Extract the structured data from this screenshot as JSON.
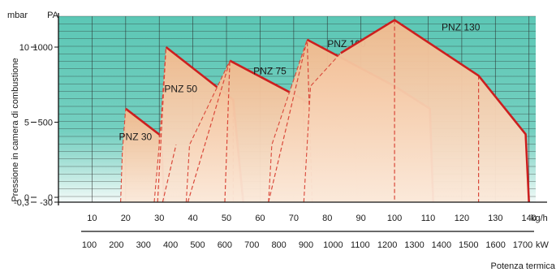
{
  "chart_data": {
    "type": "area",
    "title": "",
    "ylabel": "Pressione in camera di combustione",
    "y_units": {
      "left": "mbar",
      "right": "PA"
    },
    "y_ticks_mbar": [
      {
        "label": "10",
        "value": 10
      },
      {
        "label": "5",
        "value": 5
      },
      {
        "label": "0",
        "value": 0
      },
      {
        "label": "-0,3",
        "value": -0.3
      }
    ],
    "y_ticks_pa": [
      {
        "label": "1000",
        "value": 1000
      },
      {
        "label": "500",
        "value": 500
      },
      {
        "label": "0",
        "value": 0
      },
      {
        "label": "-30",
        "value": -30
      }
    ],
    "ylim_mbar": [
      -0.3,
      12
    ],
    "xlim_kgh": [
      0,
      142
    ],
    "x_unit_kgh": "kg/h",
    "x_ticks_kgh": [
      "10",
      "20",
      "30",
      "40",
      "50",
      "60",
      "70",
      "80",
      "90",
      "100",
      "110",
      "120",
      "130",
      "140"
    ],
    "x_unit_kw": "kW",
    "x_ticks_kw": [
      {
        "label": "100",
        "kgh": 8.5
      },
      {
        "label": "200",
        "kgh": 17
      },
      {
        "label": "300",
        "kgh": 25.5
      },
      {
        "label": "400",
        "kgh": 34
      },
      {
        "label": "500",
        "kgh": 42.5
      },
      {
        "label": "600",
        "kgh": 51
      },
      {
        "label": "700",
        "kgh": 59.5
      },
      {
        "label": "800",
        "kgh": 68
      },
      {
        "label": "900",
        "kgh": 76.5
      },
      {
        "label": "1000",
        "kgh": 85
      },
      {
        "label": "1100",
        "kgh": 93.5
      },
      {
        "label": "1200",
        "kgh": 102
      },
      {
        "label": "1300",
        "kgh": 110.5
      },
      {
        "label": "1400",
        "kgh": 119
      },
      {
        "label": "1500",
        "kgh": 127.5
      },
      {
        "label": "1600",
        "kgh": 136
      },
      {
        "label": "1700",
        "kgh": 144.5
      }
    ],
    "x_title_kw": "Potenza termica",
    "series": [
      {
        "name": "PNZ 30",
        "label_at": [
          18,
          3.8
        ],
        "points": [
          [
            18.5,
            -0.3
          ],
          [
            19,
            3.0
          ],
          [
            20,
            5.9
          ],
          [
            30.5,
            4.1
          ],
          [
            31.5,
            -0.3
          ]
        ],
        "dashed": [
          [
            30,
            -0.3
          ],
          [
            30,
            4.1
          ]
        ]
      },
      {
        "name": "PNZ 50",
        "label_at": [
          31.5,
          7.0
        ],
        "points": [
          [
            28.5,
            -0.3
          ],
          [
            30,
            3.5
          ],
          [
            32,
            10.0
          ],
          [
            52,
            6.5
          ],
          [
            55,
            -0.3
          ]
        ],
        "dashed": [
          [
            29.5,
            -0.3
          ],
          [
            32,
            10.0
          ],
          [
            31,
            -0.3
          ],
          [
            35,
            3.5
          ],
          [
            52,
            6.5
          ],
          [
            52,
            -0.3
          ]
        ]
      },
      {
        "name": "PNZ 75",
        "label_at": [
          58,
          8.2
        ],
        "points": [
          [
            38,
            -0.3
          ],
          [
            39,
            3.5
          ],
          [
            51,
            9.1
          ],
          [
            73,
            6.5
          ],
          [
            88,
            4.1
          ],
          [
            89,
            -0.3
          ]
        ],
        "dashed": [
          [
            38.5,
            -0.3
          ],
          [
            51,
            9.1
          ],
          [
            49.5,
            -0.3
          ],
          [
            51,
            9.1
          ],
          [
            73,
            6.5
          ],
          [
            73,
            -0.3
          ]
        ]
      },
      {
        "name": "PNZ 100",
        "label_at": [
          80,
          10.0
        ],
        "points": [
          [
            62.5,
            -0.3
          ],
          [
            63.5,
            3.5
          ],
          [
            74,
            10.5
          ],
          [
            100,
            7.4
          ],
          [
            110.5,
            5.9
          ],
          [
            111.5,
            -0.3
          ]
        ],
        "dashed": [
          [
            62.5,
            -0.3
          ],
          [
            74,
            10.5
          ],
          [
            75.5,
            -0.3
          ],
          [
            74,
            10.5
          ],
          [
            100,
            7.4
          ],
          [
            100,
            -0.3
          ]
        ]
      },
      {
        "name": "PNZ 130",
        "label_at": [
          114,
          11.1
        ],
        "points": [
          [
            73,
            -0.3
          ],
          [
            75,
            7.4
          ],
          [
            84,
            9.6
          ],
          [
            100,
            11.8
          ],
          [
            125,
            8.1
          ],
          [
            139,
            4.2
          ],
          [
            140,
            -0.3
          ]
        ],
        "dashed": [
          [
            100,
            11.8
          ],
          [
            100,
            -0.3
          ],
          [
            125,
            8.1
          ],
          [
            125,
            -0.3
          ]
        ]
      }
    ],
    "colors": {
      "grid_background": "#5cc7b5",
      "grid_fade": "#f4fbf9",
      "area_fill_top": "#f2b98c",
      "area_fill_bottom": "#fbe9da",
      "boundary_red": "#cc1f1f",
      "dash_red": "#d9483a",
      "grid_line": "#2a2a2a"
    }
  }
}
